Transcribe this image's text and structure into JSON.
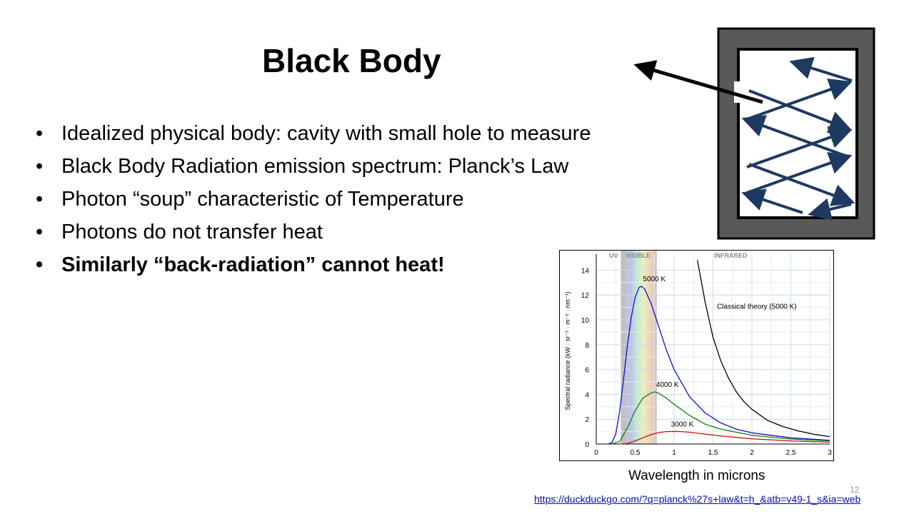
{
  "slide": {
    "title": "Black Body",
    "bullets": [
      {
        "text": "Idealized physical body: cavity with small hole to measure",
        "bold": false
      },
      {
        "text": "Black Body Radiation emission spectrum: Planck’s Law",
        "bold": false
      },
      {
        "text": "Photon “soup” characteristic of Temperature",
        "bold": false
      },
      {
        "text": "Photons do not transfer heat",
        "bold": false
      },
      {
        "text": "Similarly “back-radiation” cannot heat!",
        "bold": true
      }
    ],
    "bullet_glyph": "•",
    "caption": "Wavelength in microns",
    "slide_number": "12",
    "link": "https://duckduckgo.com/?q=planck%27s+law&t=h_&atb=v49-1_s&ia=web"
  },
  "chart_data": {
    "type": "line",
    "ylabel": "Spectral radiance (kW · sr⁻¹ · m⁻² · nm⁻¹)",
    "xlabel": "",
    "xlim": [
      0,
      3
    ],
    "ylim": [
      0,
      15
    ],
    "x_ticks": [
      "0",
      "0.5",
      "1",
      "1.5",
      "2",
      "2.5",
      "3"
    ],
    "y_ticks": [
      "0",
      "2",
      "4",
      "6",
      "8",
      "10",
      "12",
      "14"
    ],
    "band_labels": {
      "uv": "UV",
      "visible": "VISIBLE",
      "infrared": "INFRARED"
    },
    "visible_band": [
      0.38,
      0.75
    ],
    "grid": true,
    "series": [
      {
        "name": "5000 K",
        "color": "#1010c8",
        "x": [
          0.15,
          0.2,
          0.25,
          0.3,
          0.35,
          0.4,
          0.45,
          0.5,
          0.55,
          0.58,
          0.62,
          0.7,
          0.8,
          0.9,
          1.0,
          1.2,
          1.4,
          1.6,
          1.8,
          2.0,
          2.5,
          3.0
        ],
        "y": [
          0.0,
          0.1,
          0.8,
          2.6,
          5.2,
          7.9,
          10.2,
          11.8,
          12.6,
          12.7,
          12.5,
          11.4,
          9.5,
          7.6,
          6.0,
          3.8,
          2.5,
          1.7,
          1.2,
          0.9,
          0.5,
          0.3
        ]
      },
      {
        "name": "4000 K",
        "color": "#108010",
        "x": [
          0.2,
          0.3,
          0.4,
          0.5,
          0.6,
          0.7,
          0.75,
          0.8,
          0.9,
          1.0,
          1.2,
          1.4,
          1.6,
          2.0,
          2.5,
          3.0
        ],
        "y": [
          0.0,
          0.2,
          1.3,
          2.7,
          3.7,
          4.1,
          4.2,
          4.1,
          3.7,
          3.2,
          2.3,
          1.6,
          1.2,
          0.7,
          0.4,
          0.25
        ]
      },
      {
        "name": "3000 K",
        "color": "#d01010",
        "x": [
          0.3,
          0.4,
          0.5,
          0.6,
          0.7,
          0.8,
          0.9,
          1.0,
          1.1,
          1.2,
          1.4,
          1.6,
          2.0,
          2.5,
          3.0
        ],
        "y": [
          0.0,
          0.05,
          0.25,
          0.5,
          0.75,
          0.92,
          1.0,
          1.02,
          1.0,
          0.95,
          0.8,
          0.65,
          0.42,
          0.25,
          0.15
        ]
      },
      {
        "name": "Classical theory (5000 K)",
        "color": "#000000",
        "x": [
          1.3,
          1.4,
          1.5,
          1.6,
          1.7,
          1.8,
          1.9,
          2.0,
          2.2,
          2.4,
          2.6,
          2.8,
          3.0
        ],
        "y": [
          14.8,
          11.4,
          8.6,
          6.7,
          5.3,
          4.2,
          3.4,
          2.8,
          1.9,
          1.4,
          1.05,
          0.78,
          0.6
        ]
      }
    ],
    "annotations": [
      {
        "text": "5000 K",
        "x": 0.6,
        "y": 13.1
      },
      {
        "text": "4000 K",
        "x": 0.77,
        "y": 4.6
      },
      {
        "text": "3000 K",
        "x": 0.96,
        "y": 1.4
      },
      {
        "text": "Classical theory (5000 K)",
        "x": 1.55,
        "y": 10.9
      }
    ]
  }
}
